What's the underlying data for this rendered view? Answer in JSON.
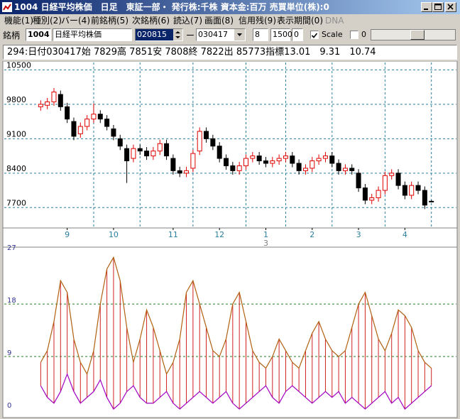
{
  "window": {
    "title": "1004 日経平均株価　日足　東証一部・ 発行株:千株 資本金:百万 売買単位(株):0"
  },
  "menu": [
    "機能(1)",
    "種別(2)",
    "バー(4)",
    "前銘柄(5)",
    "次銘柄(6)",
    "読込(7)",
    "画面(8)",
    "信用残(9)",
    "表示期間(0)",
    "DNA"
  ],
  "toolbar": {
    "code_label": "銘柄",
    "code": "1004",
    "name": "日経平均株価",
    "from": "020815",
    "sep": "ー",
    "to": "030417",
    "field_a": "8",
    "field_b": "1500",
    "field_c": "0",
    "scale_label": "Scale",
    "field_d": "0"
  },
  "info": "294:日付030417始 7829高 7851安 7808終 7822出 85773指標13.01　9.31　10.74",
  "chart_data": [
    {
      "type": "candlestick",
      "x": [
        1,
        2,
        3,
        4,
        5,
        6,
        7,
        8,
        9,
        10,
        11,
        12,
        13,
        14,
        15,
        16,
        17,
        18,
        19,
        20,
        21,
        22,
        23,
        24,
        25,
        26,
        27,
        28,
        29,
        30,
        31,
        32,
        33,
        34,
        35,
        36,
        37,
        38,
        39,
        40,
        41,
        42,
        43,
        44,
        45,
        46,
        47,
        48,
        49,
        50,
        51,
        52,
        53,
        54,
        55,
        56,
        57,
        58,
        59,
        60
      ],
      "open": [
        9750,
        9780,
        9850,
        10000,
        9750,
        9450,
        9200,
        9350,
        9500,
        9600,
        9500,
        9300,
        9100,
        8900,
        8700,
        8900,
        8850,
        8750,
        8850,
        9000,
        8700,
        8450,
        8400,
        8500,
        8850,
        9250,
        9100,
        8950,
        8700,
        8550,
        8450,
        8550,
        8700,
        8750,
        8650,
        8600,
        8650,
        8700,
        8750,
        8600,
        8450,
        8500,
        8650,
        8700,
        8750,
        8600,
        8450,
        8500,
        8400,
        8100,
        7850,
        7900,
        8050,
        8350,
        8400,
        8150,
        7950,
        8150,
        8050,
        7829
      ],
      "high": [
        9880,
        9930,
        10130,
        10080,
        9830,
        9530,
        9430,
        9580,
        9820,
        9680,
        9580,
        9380,
        9180,
        8980,
        8980,
        8980,
        8930,
        8930,
        9080,
        9080,
        8780,
        8530,
        8530,
        8880,
        9330,
        9330,
        9180,
        9030,
        8780,
        8630,
        8630,
        8780,
        8830,
        8830,
        8730,
        8730,
        8780,
        8830,
        8830,
        8680,
        8580,
        8730,
        8780,
        8830,
        8830,
        8680,
        8580,
        8580,
        8480,
        8180,
        7980,
        8130,
        8430,
        8480,
        8480,
        8230,
        8230,
        8230,
        8130,
        7851
      ],
      "low": [
        9670,
        9700,
        9770,
        9670,
        9420,
        9070,
        9120,
        9270,
        9420,
        9420,
        9270,
        9070,
        8870,
        8200,
        8620,
        8770,
        8670,
        8670,
        8770,
        8670,
        8370,
        8320,
        8320,
        8420,
        8770,
        9020,
        8870,
        8620,
        8470,
        8370,
        8370,
        8470,
        8620,
        8570,
        8520,
        8520,
        8570,
        8620,
        8520,
        8370,
        8370,
        8420,
        8570,
        8620,
        8520,
        8370,
        8370,
        8370,
        8020,
        7770,
        7770,
        7820,
        7970,
        8270,
        8070,
        7870,
        7870,
        7970,
        7670,
        7808
      ],
      "close": [
        9800,
        9850,
        10050,
        9750,
        9500,
        9150,
        9350,
        9500,
        9600,
        9500,
        9350,
        9150,
        8950,
        8650,
        8900,
        8850,
        8750,
        8850,
        9000,
        8750,
        8450,
        8400,
        8450,
        8800,
        9250,
        9100,
        8950,
        8700,
        8550,
        8450,
        8550,
        8700,
        8750,
        8650,
        8600,
        8650,
        8700,
        8750,
        8600,
        8450,
        8500,
        8650,
        8700,
        8750,
        8600,
        8450,
        8500,
        8450,
        8100,
        7850,
        7900,
        8050,
        8350,
        8400,
        8150,
        7950,
        8150,
        8050,
        7750,
        7822
      ],
      "up_color": "#e00000",
      "down_color": "#000000",
      "xlim": [
        0,
        64
      ],
      "ylim": [
        7300,
        10650
      ],
      "yticks": [
        7700,
        8400,
        9100,
        9800,
        10500
      ],
      "xticks": [
        {
          "value": 5,
          "label": "9"
        },
        {
          "value": 12,
          "label": "10"
        },
        {
          "value": 21,
          "label": "11"
        },
        {
          "value": 28,
          "label": "12"
        },
        {
          "value": 35,
          "label": "1"
        },
        {
          "value": 42,
          "label": "2"
        },
        {
          "value": 49,
          "label": "3"
        },
        {
          "value": 56,
          "label": "4"
        }
      ],
      "xgrid": [
        9,
        16,
        24,
        32,
        38,
        45,
        53,
        60
      ],
      "year_label": "3",
      "grid": true,
      "grid_color": "#2a7fa0"
    },
    {
      "type": "band",
      "x": [
        1,
        2,
        3,
        4,
        5,
        6,
        7,
        8,
        9,
        10,
        11,
        12,
        13,
        14,
        15,
        16,
        17,
        18,
        19,
        20,
        21,
        22,
        23,
        24,
        25,
        26,
        27,
        28,
        29,
        30,
        31,
        32,
        33,
        34,
        35,
        36,
        37,
        38,
        39,
        40,
        41,
        42,
        43,
        44,
        45,
        46,
        47,
        48,
        49,
        50,
        51,
        52,
        53,
        54,
        55,
        56,
        57,
        58,
        59,
        60
      ],
      "series": [
        {
          "color": "#b06010",
          "values": [
            8,
            10,
            15,
            22,
            20,
            12,
            8,
            6,
            10,
            18,
            24,
            26,
            22,
            14,
            8,
            12,
            17,
            14,
            10,
            6,
            8,
            12,
            20,
            22,
            18,
            14,
            10,
            9,
            12,
            18,
            20,
            15,
            10,
            8,
            7,
            9,
            12,
            10,
            8,
            7,
            10,
            13,
            15,
            12,
            10,
            9,
            10,
            14,
            18,
            20,
            16,
            12,
            10,
            13,
            17,
            16,
            14,
            10,
            8,
            7
          ]
        },
        {
          "color": "#a000c0",
          "values": [
            4,
            2,
            1,
            3,
            6,
            3,
            1,
            2,
            3,
            5,
            2,
            0,
            1,
            3,
            4,
            2,
            1,
            1,
            2,
            3,
            1,
            0,
            1,
            2,
            3,
            2,
            1,
            2,
            3,
            1,
            0,
            1,
            2,
            3,
            4,
            2,
            1,
            3,
            4,
            3,
            2,
            1,
            2,
            3,
            2,
            3,
            1,
            2,
            1,
            0,
            1,
            2,
            3,
            1,
            2,
            0,
            1,
            2,
            3,
            4
          ]
        }
      ],
      "hatch_color": "#d02020",
      "xlim": [
        0,
        64
      ],
      "ylim": [
        0,
        27.5
      ],
      "yticks": [
        0,
        9,
        18,
        27
      ],
      "grid_lines": [
        9,
        18
      ],
      "grid_color": "#208020",
      "tick_color": "#303090"
    }
  ]
}
